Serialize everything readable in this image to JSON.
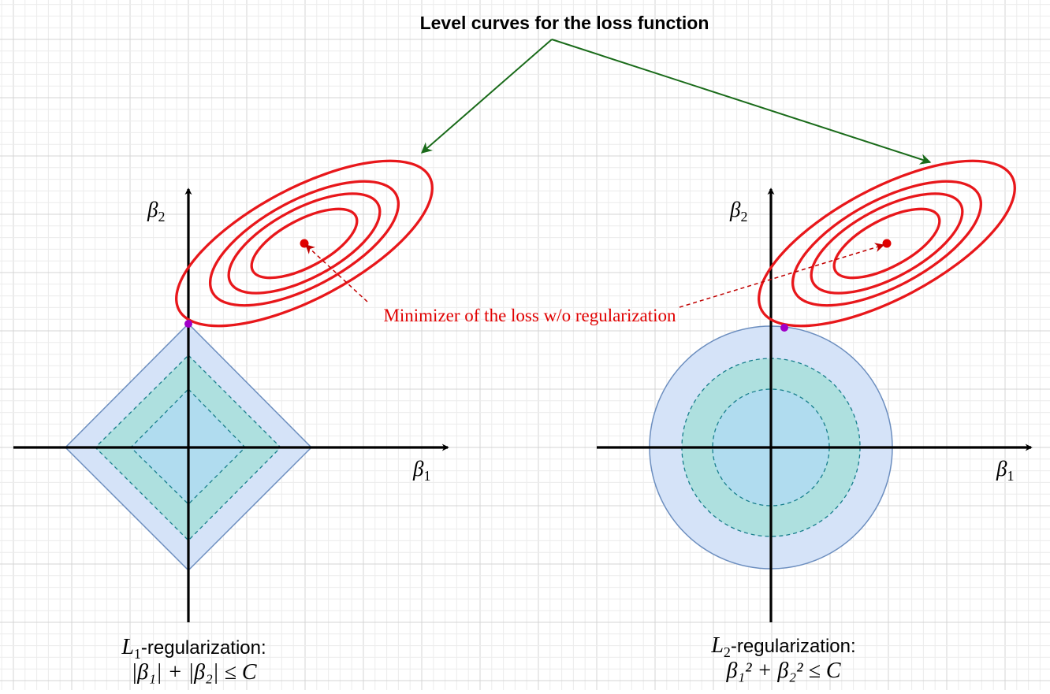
{
  "title": "Level curves for the loss function",
  "annotation": "Minimizer of the loss w/o regularization",
  "left_panel": {
    "x_axis_label": "β",
    "x_axis_sub": "1",
    "y_axis_label": "β",
    "y_axis_sub": "2",
    "caption_line1_var": "L",
    "caption_line1_sub": "1",
    "caption_line1_text": "-regularization:",
    "caption_line2": "|β₁| + |β₂| ≤ C"
  },
  "right_panel": {
    "x_axis_label": "β",
    "x_axis_sub": "1",
    "y_axis_label": "β",
    "y_axis_sub": "2",
    "caption_line1_var": "L",
    "caption_line1_sub": "2",
    "caption_line1_text": "-regularization:",
    "caption_line2": "β₁² + β₂² ≤ C"
  },
  "colors": {
    "contour": "#e8171b",
    "minimizer": "#e00000",
    "tangent_point": "#a000c8",
    "outer_region": "#d5e3f8",
    "outer_stroke": "#6c8ebf",
    "middle_region": "#aee0df",
    "inner_region": "#b0dcef",
    "dashed_stroke": "#177e8c",
    "green_arrow": "#1a6b1a",
    "grid_minor": "#ececec",
    "grid_major": "#d4d4d4"
  }
}
